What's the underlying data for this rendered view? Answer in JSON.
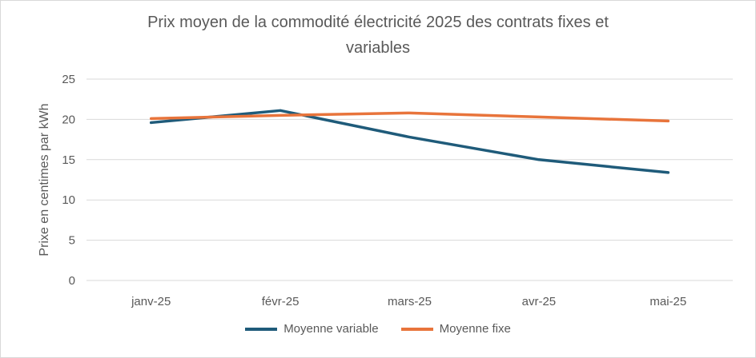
{
  "chart_data": {
    "type": "line",
    "title": "Prix moyen de la commodité électricité 2025 des contrats fixes et variables",
    "title_lines": [
      "Prix moyen de la commodité électricité 2025 des contrats fixes et",
      "variables"
    ],
    "categories": [
      "janv-25",
      "févr-25",
      "mars-25",
      "avr-25",
      "mai-25"
    ],
    "series": [
      {
        "name": "Moyenne variable",
        "color": "#1F5B7A",
        "values": [
          19.6,
          21.1,
          17.8,
          15.0,
          13.4
        ]
      },
      {
        "name": "Moyenne fixe",
        "color": "#E8743B",
        "values": [
          20.1,
          20.5,
          20.8,
          20.3,
          19.8
        ]
      }
    ],
    "xlabel": "",
    "ylabel": "Prixe en centimes par kWh",
    "ylim": [
      0,
      25
    ],
    "yticks": [
      0,
      5,
      10,
      15,
      20,
      25
    ],
    "grid": true,
    "legend_position": "bottom"
  }
}
